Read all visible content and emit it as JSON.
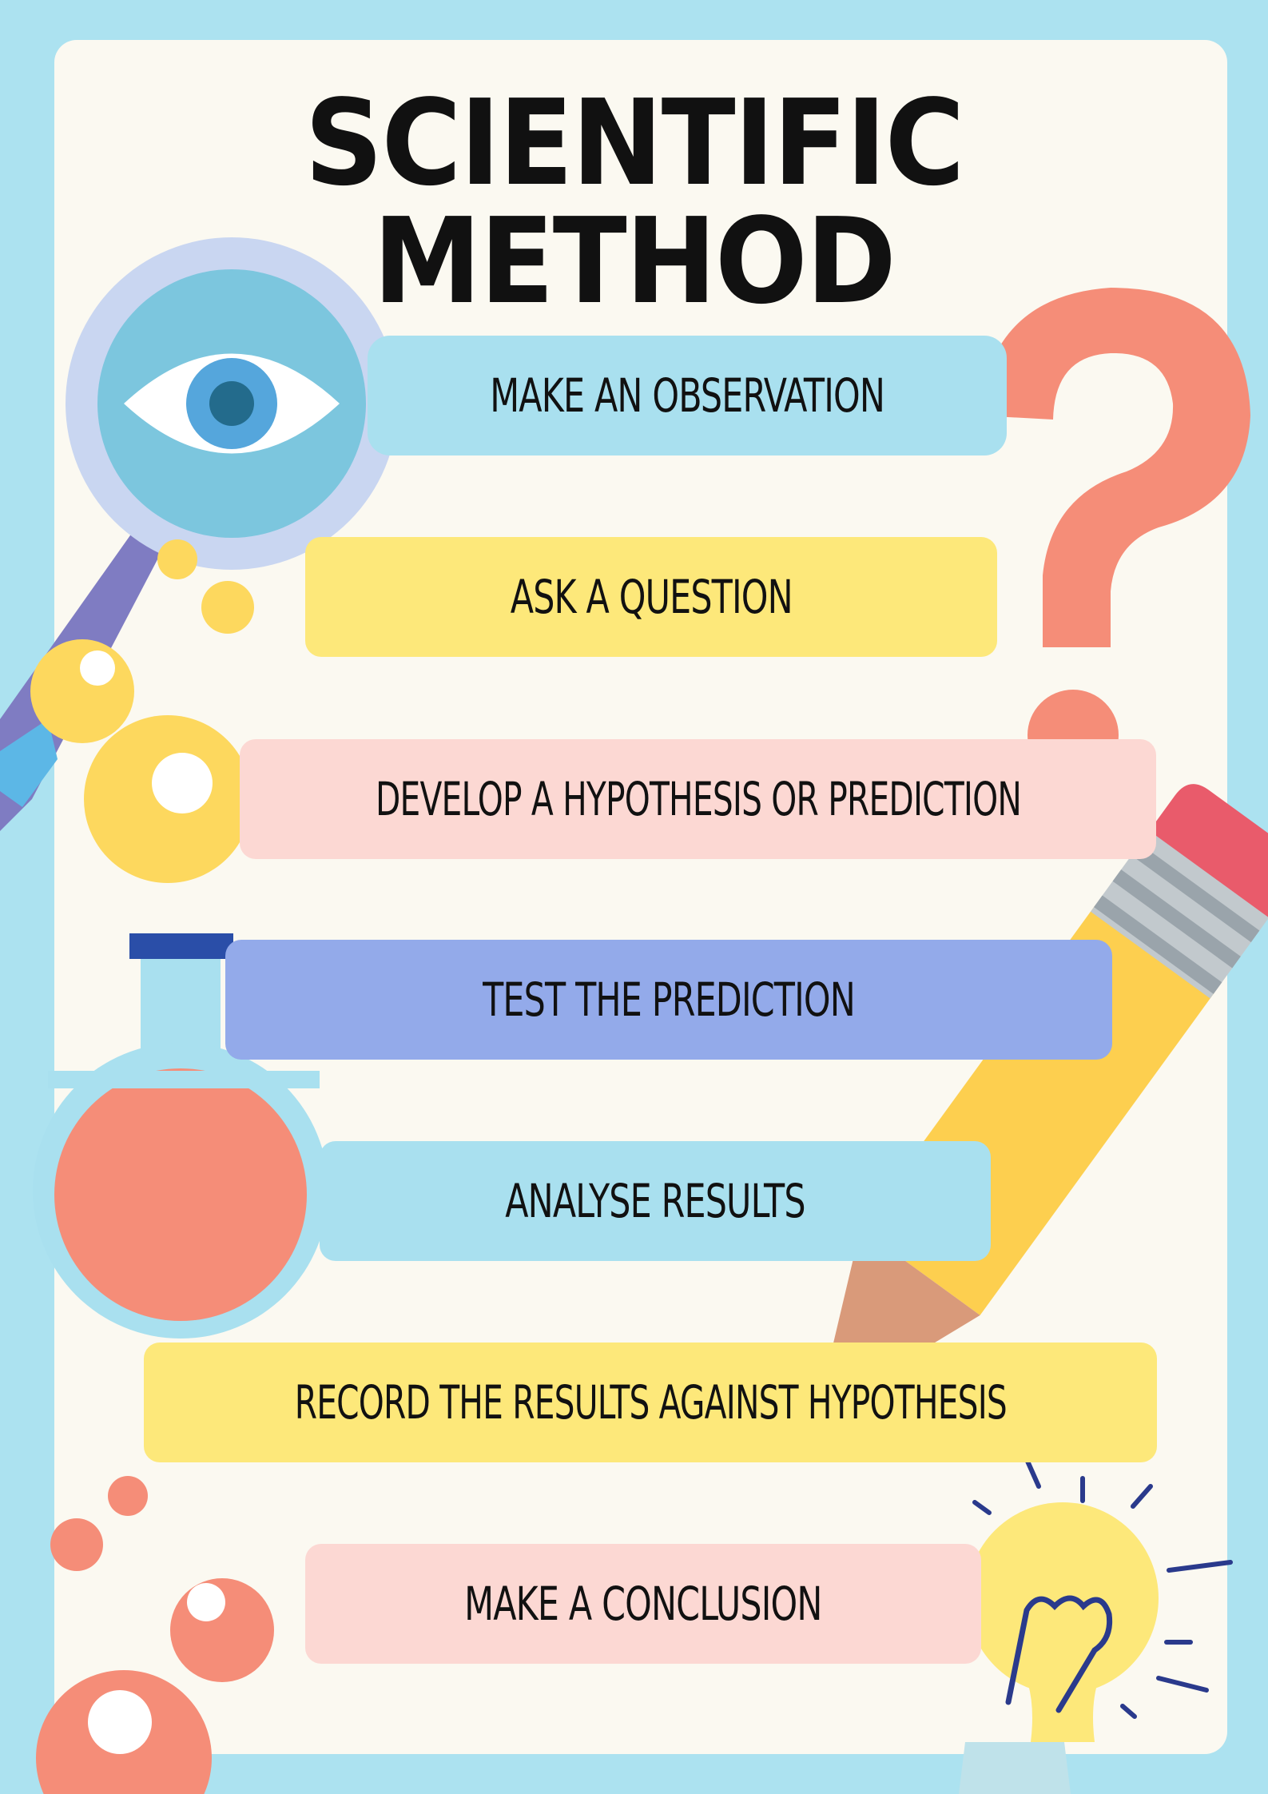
{
  "title": "SCIENTIFIC METHOD",
  "steps": [
    {
      "label": "MAKE AN OBSERVATION"
    },
    {
      "label": "ASK A QUESTION"
    },
    {
      "label": "DEVELOP A HYPOTHESIS OR PREDICTION"
    },
    {
      "label": "TEST THE PREDICTION"
    },
    {
      "label": "ANALYSE RESULTS"
    },
    {
      "label": "RECORD THE RESULTS AGAINST HYPOTHESIS"
    },
    {
      "label": "MAKE A CONCLUSION"
    }
  ],
  "colors": {
    "background": "#ace2f0",
    "sheet": "#fbf9f1",
    "blue": "#a9e0ef",
    "yellow": "#fde87a",
    "pink": "#fcd8d3",
    "periwinkle": "#93aaea",
    "coral": "#f58d78",
    "text": "#111111"
  },
  "icons": [
    "magnifying-glass-icon",
    "eye-icon",
    "question-mark-icon",
    "flask-icon",
    "pencil-icon",
    "light-bulb-icon",
    "bubble-icon"
  ]
}
